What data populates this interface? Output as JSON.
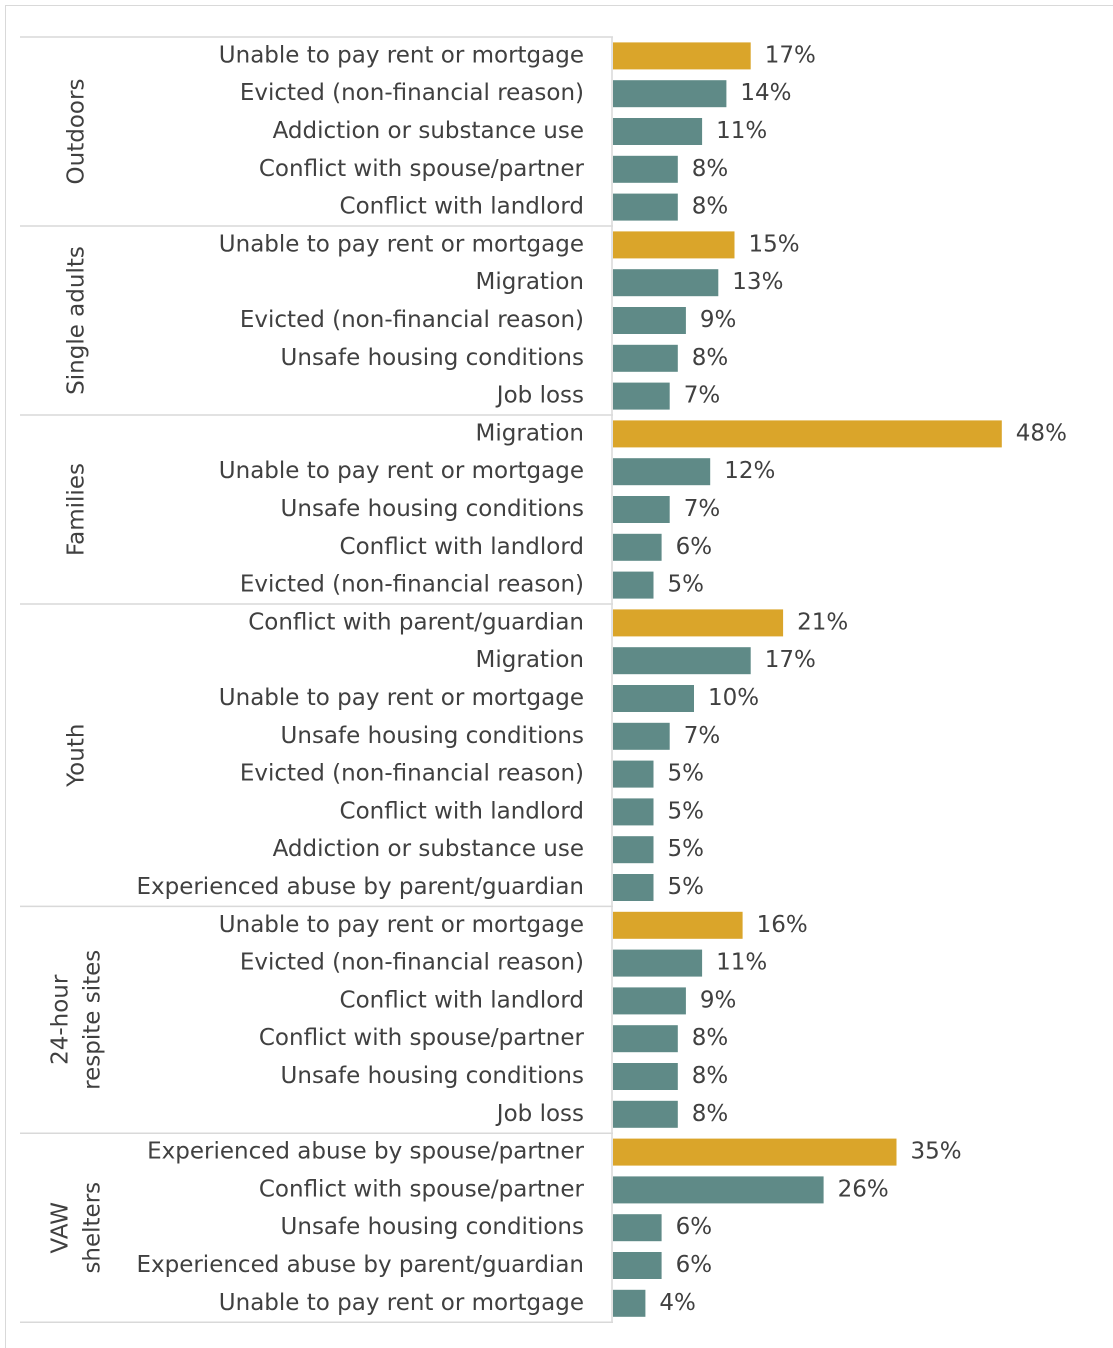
{
  "chart_data": {
    "type": "bar",
    "groups": [
      {
        "name": [
          "Outdoors"
        ],
        "categories": [
          "Unable to pay rent or mortgage",
          "Evicted (non-financial reason)",
          "Addiction or substance use",
          "Conflict with spouse/partner",
          "Conflict with landlord"
        ],
        "values": [
          17,
          14,
          11,
          8,
          8
        ],
        "value_labels": [
          "17%",
          "14%",
          "11%",
          "8%",
          "8%"
        ],
        "colors": [
          "#daa52a",
          "#5f8a87",
          "#5f8a87",
          "#5f8a87",
          "#5f8a87"
        ]
      },
      {
        "name": [
          "Single adults"
        ],
        "categories": [
          "Unable to pay rent or mortgage",
          "Migration",
          "Evicted (non-financial reason)",
          "Unsafe housing conditions",
          "Job loss"
        ],
        "values": [
          15,
          13,
          9,
          8,
          7
        ],
        "value_labels": [
          "15%",
          "13%",
          "9%",
          "8%",
          "7%"
        ],
        "colors": [
          "#daa52a",
          "#5f8a87",
          "#5f8a87",
          "#5f8a87",
          "#5f8a87"
        ]
      },
      {
        "name": [
          "Families"
        ],
        "categories": [
          "Migration",
          "Unable to pay rent or mortgage",
          "Unsafe housing conditions",
          "Conflict with landlord",
          "Evicted (non-financial reason)"
        ],
        "values": [
          48,
          12,
          7,
          6,
          5
        ],
        "value_labels": [
          "48%",
          "12%",
          "7%",
          "6%",
          "5%"
        ],
        "colors": [
          "#daa52a",
          "#5f8a87",
          "#5f8a87",
          "#5f8a87",
          "#5f8a87"
        ]
      },
      {
        "name": [
          "Youth"
        ],
        "categories": [
          "Conflict with parent/guardian",
          "Migration",
          "Unable to pay rent or mortgage",
          "Unsafe housing conditions",
          "Evicted (non-financial reason)",
          "Conflict with landlord",
          "Addiction or substance use",
          "Experienced abuse by parent/guardian"
        ],
        "values": [
          21,
          17,
          10,
          7,
          5,
          5,
          5,
          5
        ],
        "value_labels": [
          "21%",
          "17%",
          "10%",
          "7%",
          "5%",
          "5%",
          "5%",
          "5%"
        ],
        "colors": [
          "#daa52a",
          "#5f8a87",
          "#5f8a87",
          "#5f8a87",
          "#5f8a87",
          "#5f8a87",
          "#5f8a87",
          "#5f8a87"
        ]
      },
      {
        "name": [
          "24-hour",
          "respite sites"
        ],
        "categories": [
          "Unable to pay rent or mortgage",
          "Evicted (non-financial reason)",
          "Conflict with landlord",
          "Conflict with spouse/partner",
          "Unsafe housing conditions",
          "Job loss"
        ],
        "values": [
          16,
          11,
          9,
          8,
          8,
          8
        ],
        "value_labels": [
          "16%",
          "11%",
          "9%",
          "8%",
          "8%",
          "8%"
        ],
        "colors": [
          "#daa52a",
          "#5f8a87",
          "#5f8a87",
          "#5f8a87",
          "#5f8a87",
          "#5f8a87"
        ]
      },
      {
        "name": [
          "VAW",
          "shelters"
        ],
        "categories": [
          "Experienced abuse by spouse/partner",
          "Conflict with spouse/partner",
          "Unsafe housing conditions",
          "Experienced abuse by parent/guardian",
          "Unable to pay rent or mortgage"
        ],
        "values": [
          35,
          26,
          6,
          6,
          4
        ],
        "value_labels": [
          "35%",
          "26%",
          "6%",
          "6%",
          "4%"
        ],
        "colors": [
          "#daa52a",
          "#5f8a87",
          "#5f8a87",
          "#5f8a87",
          "#5f8a87"
        ]
      }
    ]
  }
}
